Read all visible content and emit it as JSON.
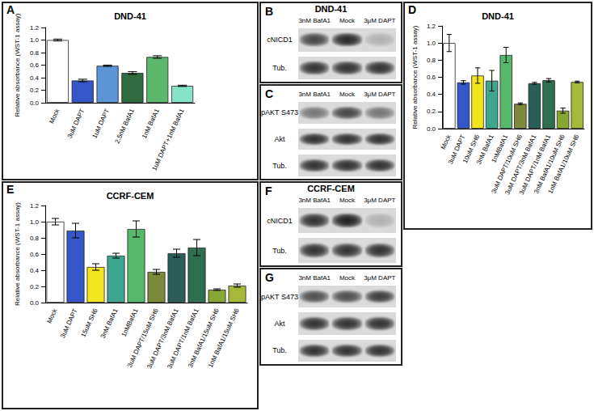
{
  "chart_data": [
    {
      "type": "bar",
      "title": "DND-41",
      "annotations": [
        "A"
      ],
      "ylabel": "Relative absorbance (WST-1 assay)",
      "categories": [
        "Mock",
        "3uM DAPT",
        "1uM DAPT",
        "2.5nM BafA1",
        "1nM BafA1",
        "1uM DAPT+1nM BafA1"
      ],
      "values": [
        1.0,
        0.355,
        0.59,
        0.475,
        0.73,
        0.27
      ],
      "error": [
        0.015,
        0.02,
        0.01,
        0.02,
        0.02,
        0.01
      ],
      "colors": [
        "#ffffff",
        "#3556c8",
        "#5b95d8",
        "#2e6b3f",
        "#5cb86a",
        "#86e3c8"
      ],
      "ylim": [
        0,
        1.2
      ],
      "yticks": [
        {
          "value": 0,
          "label": "0.0"
        },
        0.2,
        0.4,
        0.6,
        0.8,
        {
          "value": 1,
          "label": "1.0"
        },
        1.2
      ],
      "grid": false
    },
    {
      "type": "bar",
      "title": "DND-41",
      "annotations": [
        "D"
      ],
      "ylabel": "Relative absorbance (WST-1 assay)",
      "categories": [
        "Mock",
        "3uM DAPT",
        "10uM SH6",
        "3nM BafA1",
        "1nMBafA1",
        "3uM DAPT/10uM SH6",
        "3uM DAPT/3nM BafA1",
        "3uM DAPT/1nM BafA1",
        "3nM BafA1/10uM SH6",
        "1nM BafA1/10uM SH6"
      ],
      "values": [
        1.0,
        0.54,
        0.62,
        0.56,
        0.86,
        0.29,
        0.53,
        0.565,
        0.21,
        0.545
      ],
      "error": [
        0.1,
        0.02,
        0.09,
        0.12,
        0.09,
        0.01,
        0.01,
        0.02,
        0.03,
        0.01
      ],
      "colors": [
        "#ffffff",
        "#3556c8",
        "#f2e51d",
        "#3ea58f",
        "#56b86a",
        "#7d8a3a",
        "#2a5e57",
        "#2d6f4e",
        "#86a832",
        "#a5b83a"
      ],
      "ylim": [
        0,
        1.2
      ],
      "yticks": [
        {
          "value": 0,
          "label": "0.0"
        },
        0.2,
        0.4,
        0.6,
        0.8,
        {
          "value": 1,
          "label": "1.0"
        },
        1.2
      ],
      "grid": false
    },
    {
      "type": "bar",
      "title": "CCRF-CEM",
      "annotations": [
        "E"
      ],
      "ylabel": "Relative absorbance (WST-1 assay)",
      "categories": [
        "Mock",
        "3uM DAPT",
        "15uM SH6",
        "3nM BafA1",
        "1nMBafA1",
        "3uM DAPT/15uM SH6",
        "3uM DAPT/3nM BafA1",
        "3uM DAPT/1nM BafA1",
        "3nM BafA1/15uM SH6",
        "1nM BafA1/15uM SH6"
      ],
      "values": [
        1.0,
        0.89,
        0.44,
        0.58,
        0.91,
        0.38,
        0.61,
        0.68,
        0.16,
        0.21
      ],
      "error": [
        0.04,
        0.09,
        0.04,
        0.03,
        0.1,
        0.03,
        0.05,
        0.1,
        0.01,
        0.02
      ],
      "colors": [
        "#ffffff",
        "#3556c8",
        "#f2e51d",
        "#3ea58f",
        "#56b86a",
        "#7a8a3a",
        "#2a5e57",
        "#2d6f4e",
        "#86a832",
        "#a5b83a"
      ],
      "ylim": [
        0,
        1.2
      ],
      "yticks": [
        {
          "value": 0,
          "label": "0.0"
        },
        0.2,
        0.4,
        0.6,
        0.8,
        {
          "value": 1,
          "label": "1.0"
        },
        1.2
      ],
      "grid": false
    }
  ],
  "blots": [
    {
      "panel": "B",
      "title": "DND-41",
      "lanes": [
        "3nM BafA1",
        "Mock",
        "3μM DAPT"
      ],
      "rows": [
        "cNICD1",
        "Tub."
      ]
    },
    {
      "panel": "C",
      "lanes": [
        "3nM BafA1",
        "Mock",
        "3μM DAPT"
      ],
      "rows": [
        "pAKT S473",
        "Akt",
        "Tub."
      ]
    },
    {
      "panel": "F",
      "title": "CCRF-CEM",
      "lanes": [
        "3nM BafA1",
        "Mock",
        "3μM DAPT"
      ],
      "rows": [
        "cNICD1",
        "Tub."
      ]
    },
    {
      "panel": "G",
      "lanes": [
        "3nM BafA1",
        "Mock",
        "3μM DAPT"
      ],
      "rows": [
        "pAKT S473",
        "Akt",
        "Tub."
      ]
    }
  ]
}
